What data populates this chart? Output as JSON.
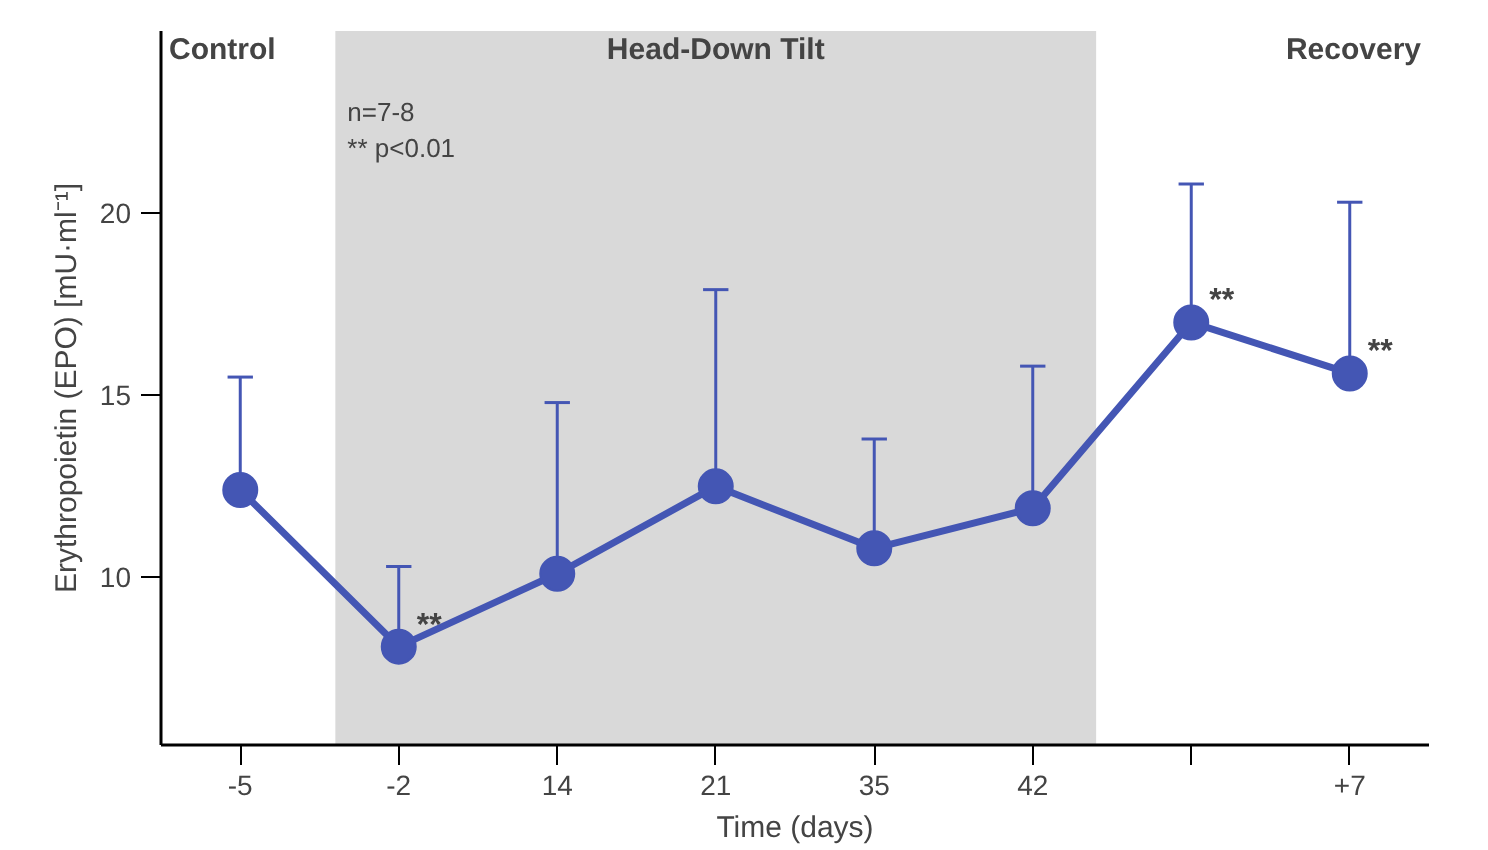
{
  "chart_data": {
    "type": "line",
    "xlabel": "Time (days)",
    "ylabel": "Erythropoietin (EPO) [mU·ml⁻¹]",
    "categories": [
      "-5",
      "-2",
      "14",
      "21",
      "35",
      "42",
      null,
      "+7"
    ],
    "series": [
      {
        "color": "#4456b4",
        "values": [
          12.4,
          8.1,
          10.1,
          12.5,
          10.8,
          11.9,
          17.0,
          15.6
        ],
        "errors": [
          [
            12.4,
            15.5
          ],
          [
            8.1,
            10.3
          ],
          [
            10.1,
            14.8
          ],
          [
            12.5,
            17.9
          ],
          [
            10.8,
            13.8
          ],
          [
            11.9,
            15.8
          ],
          [
            17.0,
            20.8
          ],
          [
            15.6,
            20.3
          ]
        ]
      }
    ],
    "marker": "circle",
    "line_style": "solid",
    "grid": false,
    "ylim": [
      5.4,
      25
    ],
    "yticks": [
      10,
      15,
      20
    ],
    "bands": [
      {
        "axis": "x",
        "from": "-2",
        "to": "42",
        "label": "Head-Down Tilt",
        "color": "#d9d9d9"
      }
    ],
    "annotations": [
      "Control",
      "Recovery",
      "n=7-8",
      "** p<0.01",
      {
        "text": "**",
        "x": "-2",
        "y": 8.1
      },
      {
        "text": "**",
        "y": 17.0
      },
      {
        "text": "**",
        "x": "+7",
        "y": 15.6
      }
    ]
  }
}
